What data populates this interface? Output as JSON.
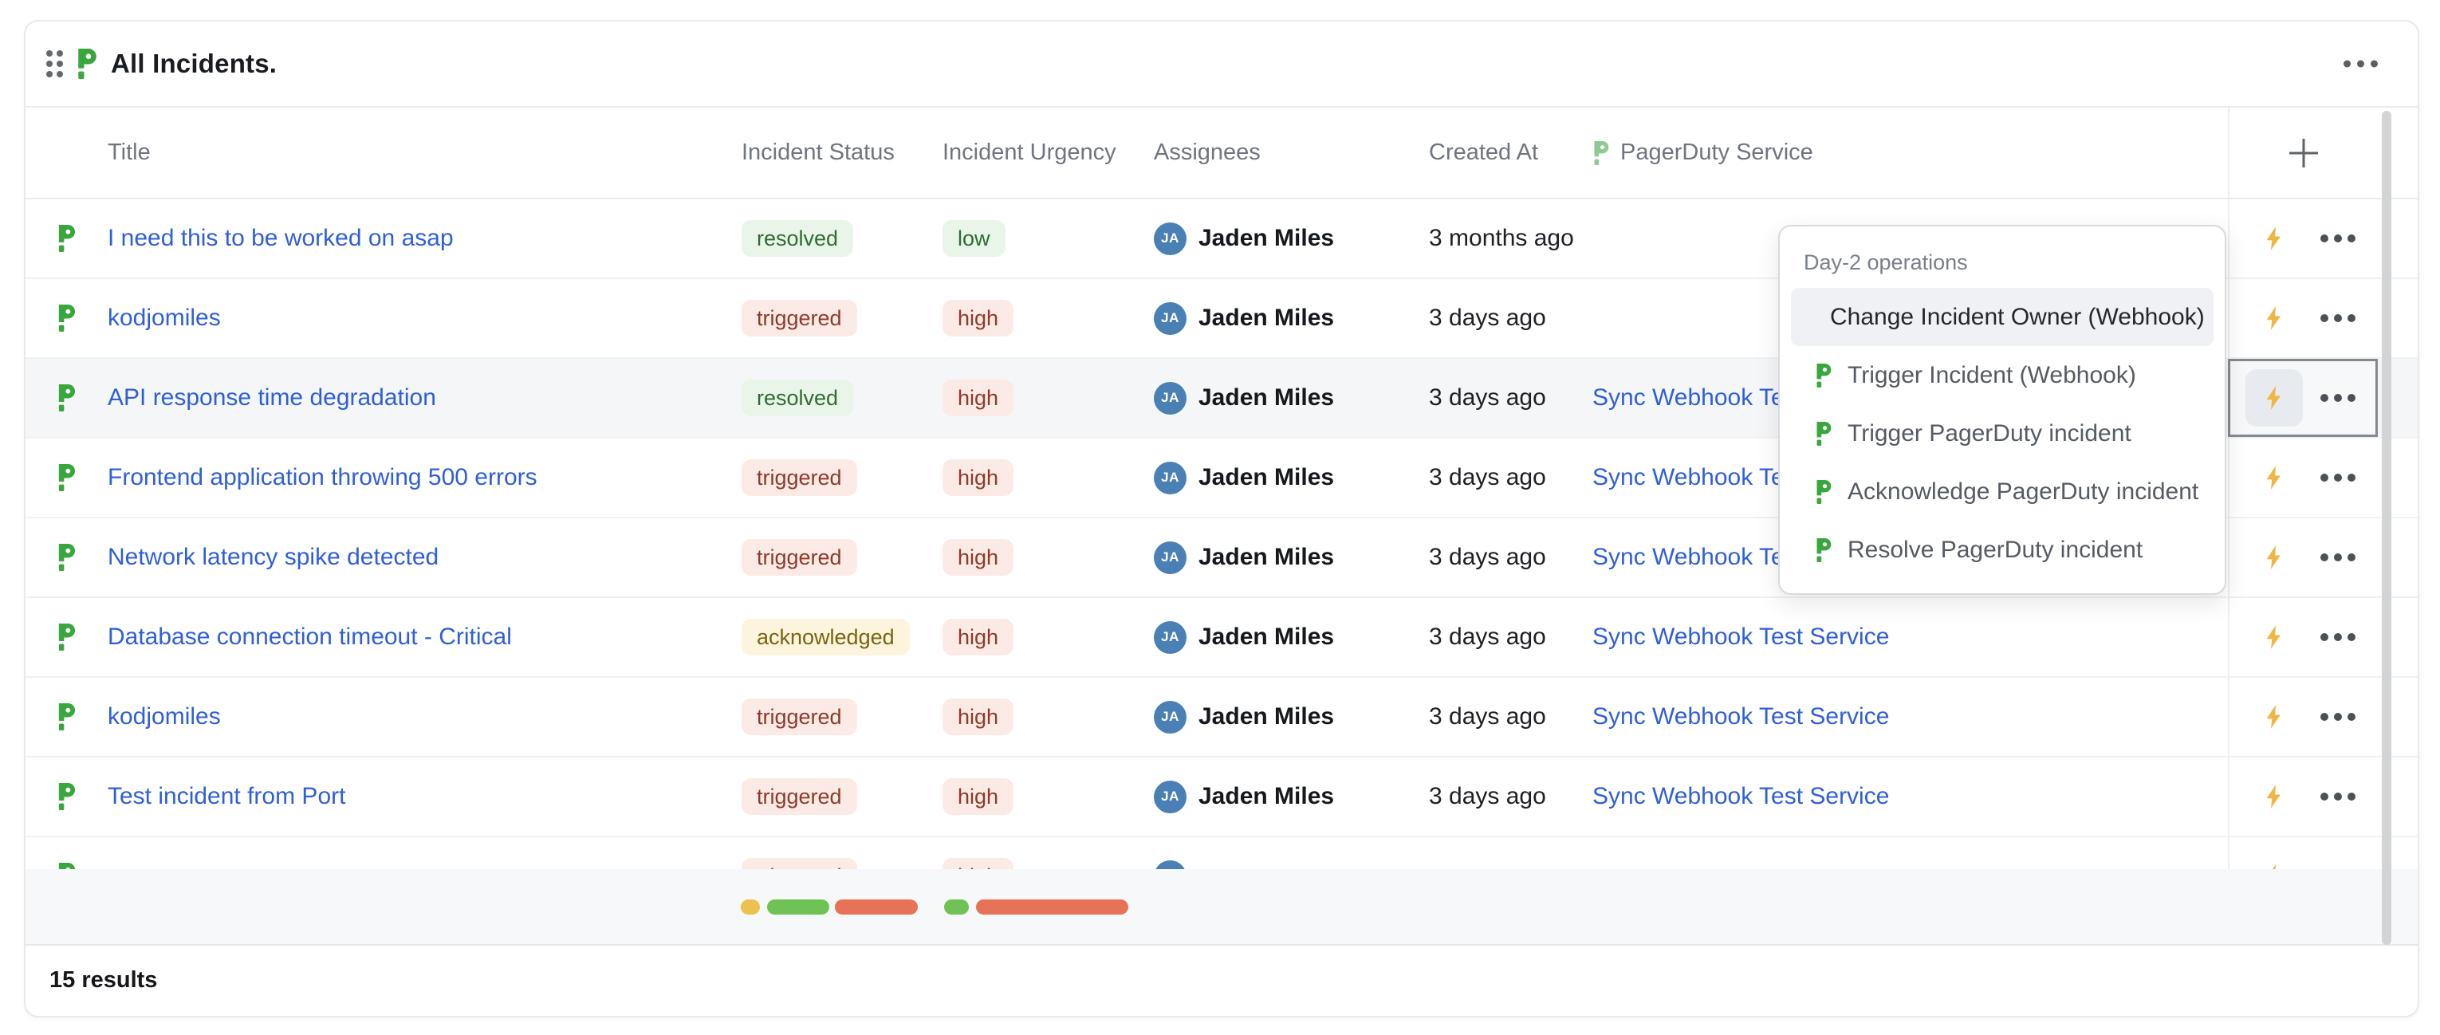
{
  "widget": {
    "title": "All Incidents.",
    "results_count": "15 results"
  },
  "icons": {
    "drag_handle": "drag-handle-icon",
    "widget_menu": "ellipsis-icon",
    "brand": "port-p-icon",
    "add_column": "plus-icon",
    "run_action": "lightning-bolt-icon",
    "row_menu": "ellipsis-icon"
  },
  "colors": {
    "brand_green": "#3aa63e",
    "link_blue": "#2f5fd8",
    "badge_green_bg": "#eaf5e9",
    "badge_green_text": "#2f6b33",
    "badge_red_bg": "#fbeae5",
    "badge_red_text": "#8e3a2b",
    "badge_yellow_bg": "#fcf4dd",
    "badge_yellow_text": "#7a6412",
    "avatar_blue": "#4a80b4",
    "bolt_yellow": "#efb643",
    "pill_yellow": "#ecc14e",
    "pill_green": "#6fc355",
    "pill_salmon": "#e87257"
  },
  "table": {
    "columns": [
      "Title",
      "Incident Status",
      "Incident Urgency",
      "Assignees",
      "Created At",
      "PagerDuty Service"
    ],
    "rows": [
      {
        "title": "I need this to be worked on asap",
        "status": "resolved",
        "urgency": "low",
        "assignee": "Jaden Miles",
        "initials": "JA",
        "created": "3 months ago",
        "service": "",
        "state": ""
      },
      {
        "title": "kodjomiles",
        "status": "triggered",
        "urgency": "high",
        "assignee": "Jaden Miles",
        "initials": "JA",
        "created": "3 days ago",
        "service": "",
        "state": ""
      },
      {
        "title": "API response time degradation",
        "status": "resolved",
        "urgency": "high",
        "assignee": "Jaden Miles",
        "initials": "JA",
        "created": "3 days ago",
        "service": "Sync Webhook Test Service",
        "state": "selected"
      },
      {
        "title": "Frontend application throwing 500 errors",
        "status": "triggered",
        "urgency": "high",
        "assignee": "Jaden Miles",
        "initials": "JA",
        "created": "3 days ago",
        "service": "Sync Webhook Test Service",
        "state": ""
      },
      {
        "title": "Network latency spike detected",
        "status": "triggered",
        "urgency": "high",
        "assignee": "Jaden Miles",
        "initials": "JA",
        "created": "3 days ago",
        "service": "Sync Webhook Test Service",
        "state": ""
      },
      {
        "title": "Database connection timeout - Critical",
        "status": "acknowledged",
        "urgency": "high",
        "assignee": "Jaden Miles",
        "initials": "JA",
        "created": "3 days ago",
        "service": "Sync Webhook Test Service",
        "state": ""
      },
      {
        "title": "kodjomiles",
        "status": "triggered",
        "urgency": "high",
        "assignee": "Jaden Miles",
        "initials": "JA",
        "created": "3 days ago",
        "service": "Sync Webhook Test Service",
        "state": ""
      },
      {
        "title": "Test incident from Port",
        "status": "triggered",
        "urgency": "high",
        "assignee": "Jaden Miles",
        "initials": "JA",
        "created": "3 days ago",
        "service": "Sync Webhook Test Service",
        "state": ""
      },
      {
        "title": "",
        "status": "triggered",
        "urgency": "high",
        "assignee": "",
        "initials": "",
        "created": "",
        "service": "",
        "state": ""
      }
    ]
  },
  "popup": {
    "group_label": "Day-2 operations",
    "highlighted_index": 0,
    "items": [
      "Change Incident Owner (Webhook)",
      "Trigger Incident (Webhook)",
      "Trigger PagerDuty incident",
      "Acknowledge PagerDuty incident",
      "Resolve PagerDuty incident"
    ]
  },
  "summary": {
    "status_bars": [
      {
        "color": "#ecc14e",
        "width": 24,
        "gap": 9
      },
      {
        "color": "#6fc355",
        "width": 78,
        "gap": 7
      },
      {
        "color": "#e87257",
        "width": 104,
        "gap": 33
      }
    ],
    "urgency_bars": [
      {
        "color": "#6fc355",
        "width": 31,
        "gap": 9
      },
      {
        "color": "#e87257",
        "width": 191,
        "gap": 0
      }
    ]
  }
}
